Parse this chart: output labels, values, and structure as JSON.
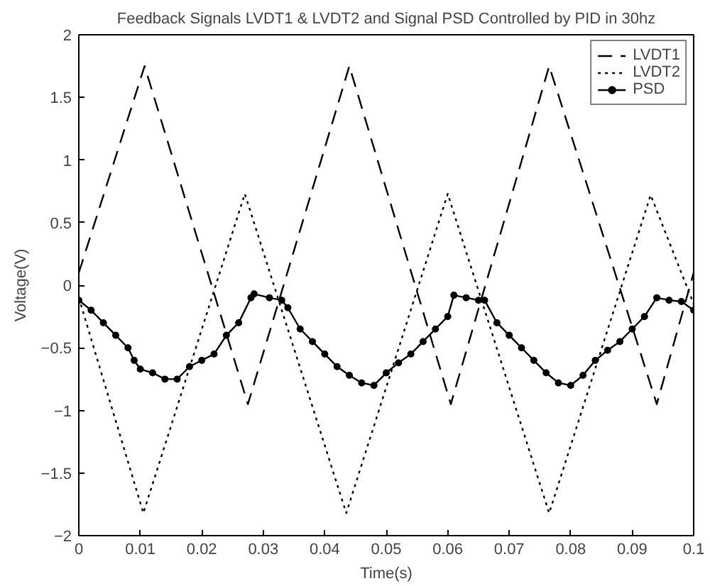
{
  "chart_data": {
    "type": "line",
    "title": "Feedback Signals LVDT1 & LVDT2 and Signal PSD Controlled by PID in 30hz",
    "xlabel": "Time(s)",
    "ylabel": "Voltage(V)",
    "xlim": [
      0,
      0.1
    ],
    "ylim": [
      -2,
      2
    ],
    "xticks": [
      0,
      0.01,
      0.02,
      0.03,
      0.04,
      0.05,
      0.06,
      0.07,
      0.08,
      0.09,
      0.1
    ],
    "yticks": [
      -2,
      -1.5,
      -1,
      -0.5,
      0,
      0.5,
      1,
      1.5,
      2
    ],
    "grid": false,
    "legend": "top right",
    "series": [
      {
        "name": "LVDT1",
        "color": "#000000",
        "line_style": "dashed",
        "marker": "none",
        "x": [
          0,
          0.0107,
          0.0275,
          0.044,
          0.0605,
          0.0765,
          0.094,
          0.1
        ],
        "values": [
          0.1,
          1.75,
          -0.95,
          1.75,
          -0.95,
          1.75,
          -0.95,
          0.1
        ]
      },
      {
        "name": "LVDT2",
        "color": "#000000",
        "line_style": "dotted",
        "marker": "none",
        "x": [
          0,
          0.0105,
          0.027,
          0.0435,
          0.06,
          0.0765,
          0.093,
          0.1
        ],
        "values": [
          -0.1,
          -1.82,
          0.73,
          -1.82,
          0.73,
          -1.82,
          0.72,
          -0.15
        ]
      },
      {
        "name": "PSD",
        "color": "#000000",
        "line_style": "solid",
        "marker": "circle",
        "x": [
          0,
          0.002,
          0.004,
          0.006,
          0.008,
          0.009,
          0.01,
          0.012,
          0.014,
          0.016,
          0.018,
          0.02,
          0.022,
          0.024,
          0.026,
          0.028,
          0.0285,
          0.031,
          0.033,
          0.034,
          0.036,
          0.038,
          0.04,
          0.042,
          0.044,
          0.046,
          0.048,
          0.05,
          0.052,
          0.054,
          0.056,
          0.058,
          0.06,
          0.061,
          0.063,
          0.065,
          0.066,
          0.068,
          0.07,
          0.072,
          0.074,
          0.076,
          0.078,
          0.08,
          0.082,
          0.084,
          0.086,
          0.088,
          0.09,
          0.092,
          0.094,
          0.096,
          0.098,
          0.1
        ],
        "values": [
          -0.12,
          -0.2,
          -0.3,
          -0.4,
          -0.5,
          -0.6,
          -0.67,
          -0.7,
          -0.75,
          -0.75,
          -0.65,
          -0.6,
          -0.55,
          -0.4,
          -0.3,
          -0.1,
          -0.07,
          -0.1,
          -0.12,
          -0.18,
          -0.35,
          -0.45,
          -0.55,
          -0.65,
          -0.72,
          -0.78,
          -0.8,
          -0.7,
          -0.62,
          -0.55,
          -0.45,
          -0.35,
          -0.25,
          -0.08,
          -0.1,
          -0.12,
          -0.12,
          -0.3,
          -0.4,
          -0.5,
          -0.6,
          -0.7,
          -0.78,
          -0.8,
          -0.72,
          -0.6,
          -0.52,
          -0.45,
          -0.35,
          -0.25,
          -0.1,
          -0.12,
          -0.13,
          -0.2
        ]
      }
    ]
  }
}
